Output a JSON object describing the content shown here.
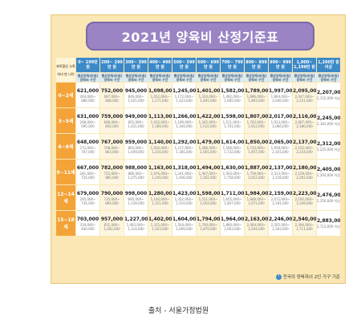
{
  "title": "2021년 양육비 산정기준표",
  "corner": {
    "top": "부모합산 소득",
    "bottom": "자녀 만 나이"
  },
  "sub_header": "평균양육비(원) 양육비 구간",
  "income_brackets": [
    "0~ 199만 원",
    "200~ 299만 원",
    "300~ 399만 원",
    "400~ 499만 원",
    "500~ 599만 원",
    "600~ 699만 원",
    "700~ 799만 원",
    "800~ 899만 원",
    "900~ 999만 원",
    "1,000~ 1,199만 원",
    "1,200만 원 이상"
  ],
  "rows": [
    {
      "age": "0~2세",
      "cells": [
        {
          "avg": "621,000",
          "range": "264,000~ 686,000"
        },
        {
          "avg": "752,000",
          "range": "687,000~ 848,000"
        },
        {
          "avg": "945,000",
          "range": "849,000~ 1,021,000"
        },
        {
          "avg": "1,098,000",
          "range": "1,022,000~ 1,171,000"
        },
        {
          "avg": "1,245,000",
          "range": "1,172,000~ 1,323,000"
        },
        {
          "avg": "1,401,000",
          "range": "1,324,000~ 1,491,000"
        },
        {
          "avg": "1,582,000",
          "range": "1,492,000~ 1,685,000"
        },
        {
          "avg": "1,789,000",
          "range": "1,686,000~ 1,893,000"
        },
        {
          "avg": "1,997,000",
          "range": "1,894,000~ 2,046,000"
        },
        {
          "avg": "2,095,000",
          "range": "2,047,000~ 2,151,000"
        },
        {
          "avg": "2,207,000",
          "range": "2,152,000 이상"
        }
      ]
    },
    {
      "age": "3~5세",
      "cells": [
        {
          "avg": "631,000",
          "range": "268,000~ 695,000"
        },
        {
          "avg": "759,000",
          "range": "696,000~ 854,000"
        },
        {
          "avg": "949,000",
          "range": "855,000~ 1,031,000"
        },
        {
          "avg": "1,113,000",
          "range": "1,032,000~ 1,189,000"
        },
        {
          "avg": "1,266,000",
          "range": "1,190,000~ 1,344,000"
        },
        {
          "avg": "1,422,000",
          "range": "1,345,000~ 1,510,000"
        },
        {
          "avg": "1,598,000",
          "range": "1,511,000~ 1,701,000"
        },
        {
          "avg": "1,807,000",
          "range": "1,702,000~ 1,912,000"
        },
        {
          "avg": "2,017,000",
          "range": "1,913,000~ 2,066,000"
        },
        {
          "avg": "2,116,000",
          "range": "2,067,000~ 2,180,000"
        },
        {
          "avg": "2,245,000",
          "range": "2,181,000 이상"
        }
      ]
    },
    {
      "age": "6~8세",
      "cells": [
        {
          "avg": "648,000",
          "range": "272,000~ 707,000"
        },
        {
          "avg": "767,000",
          "range": "708,000~ 863,000"
        },
        {
          "avg": "959,000",
          "range": "864,000~ 1,049,000"
        },
        {
          "avg": "1,140,000",
          "range": "1,050,000~ 1,216,000"
        },
        {
          "avg": "1,292,000",
          "range": "1,217,000~ 1,385,000"
        },
        {
          "avg": "1,479,000",
          "range": "1,386,000~ 1,565,000"
        },
        {
          "avg": "1,614,000",
          "range": "1,566,000~ 1,732,000"
        },
        {
          "avg": "1,850,000",
          "range": "1,733,000~ 1,957,000"
        },
        {
          "avg": "2,065,000",
          "range": "1,958,000~ 2,101,000"
        },
        {
          "avg": "2,137,000",
          "range": "2,102,000~ 2,224,000"
        },
        {
          "avg": "2,312,000",
          "range": "2,225,000 이상"
        }
      ]
    },
    {
      "age": "9~11세",
      "cells": [
        {
          "avg": "667,000",
          "range": "281,000~ 724,000"
        },
        {
          "avg": "782,000",
          "range": "725,000~ 885,000"
        },
        {
          "avg": "988,000",
          "range": "886,000~ 1,075,000"
        },
        {
          "avg": "1,163,000",
          "range": "1,076,000~ 1,240,000"
        },
        {
          "avg": "1,318,000",
          "range": "1,241,000~ 1,406,000"
        },
        {
          "avg": "1,494,000",
          "range": "1,407,000~ 1,562,000"
        },
        {
          "avg": "1,630,000",
          "range": "1,563,000~ 1,758,000"
        },
        {
          "avg": "1,887,000",
          "range": "1,759,000~ 2,012,000"
        },
        {
          "avg": "2,137,000",
          "range": "2,013,000~ 2,158,000"
        },
        {
          "avg": "2,180,000",
          "range": "2,159,000~ 2,292,000"
        },
        {
          "avg": "2,405,000",
          "range": "2,293,000 이상"
        }
      ]
    },
    {
      "age": "12~14세",
      "cells": [
        {
          "avg": "679,000",
          "range": "295,000~ 734,000"
        },
        {
          "avg": "790,000",
          "range": "735,000~ 894,000"
        },
        {
          "avg": "998,000",
          "range": "895,000~ 1,139,000"
        },
        {
          "avg": "1,280,000",
          "range": "1,140,000~ 1,351,000"
        },
        {
          "avg": "1,423,000",
          "range": "1,352,000~ 1,510,000"
        },
        {
          "avg": "1,598,000",
          "range": "1,511,000~ 1,654,000"
        },
        {
          "avg": "1,711,000",
          "range": "1,655,000~ 1,847,000"
        },
        {
          "avg": "1,984,000",
          "range": "1,848,000~ 2,071,000"
        },
        {
          "avg": "2,159,000",
          "range": "2,072,000~ 2,191,000"
        },
        {
          "avg": "2,223,000",
          "range": "2,192,000~ 2,349,000"
        },
        {
          "avg": "2,476,000",
          "range": "2,350,000 이상"
        }
      ]
    },
    {
      "age": "15~18세",
      "cells": [
        {
          "avg": "703,000",
          "range": "319,000~ 830,000"
        },
        {
          "avg": "957,000",
          "range": "831,000~ 1,092,000"
        },
        {
          "avg": "1,227,000",
          "range": "1,093,000~ 1,314,000"
        },
        {
          "avg": "1,402,000",
          "range": "1,315,000~ 1,503,000"
        },
        {
          "avg": "1,604,000",
          "range": "1,504,000~ 1,699,000"
        },
        {
          "avg": "1,794,000",
          "range": "1,700,000~ 1,879,000"
        },
        {
          "avg": "1,964,000",
          "range": "1,880,000~ 2,063,000"
        },
        {
          "avg": "2,163,000",
          "range": "2,064,000~ 2,204,000"
        },
        {
          "avg": "2,246,000",
          "range": "2,205,000~ 2,393,000"
        },
        {
          "avg": "2,540,000",
          "range": "2,394,000~ 2,711,000"
        },
        {
          "avg": "2,883,000",
          "range": "2,712,000 이상"
        }
      ]
    }
  ],
  "note": "전국의 양육자녀 2인 가구 기준",
  "caption": "출처 - 서울가정법원",
  "colors": {
    "header": "#3c89c8",
    "age": "#f3a338",
    "title_bg": "#9a84c4",
    "frame_bg": "#fbe7b3"
  }
}
